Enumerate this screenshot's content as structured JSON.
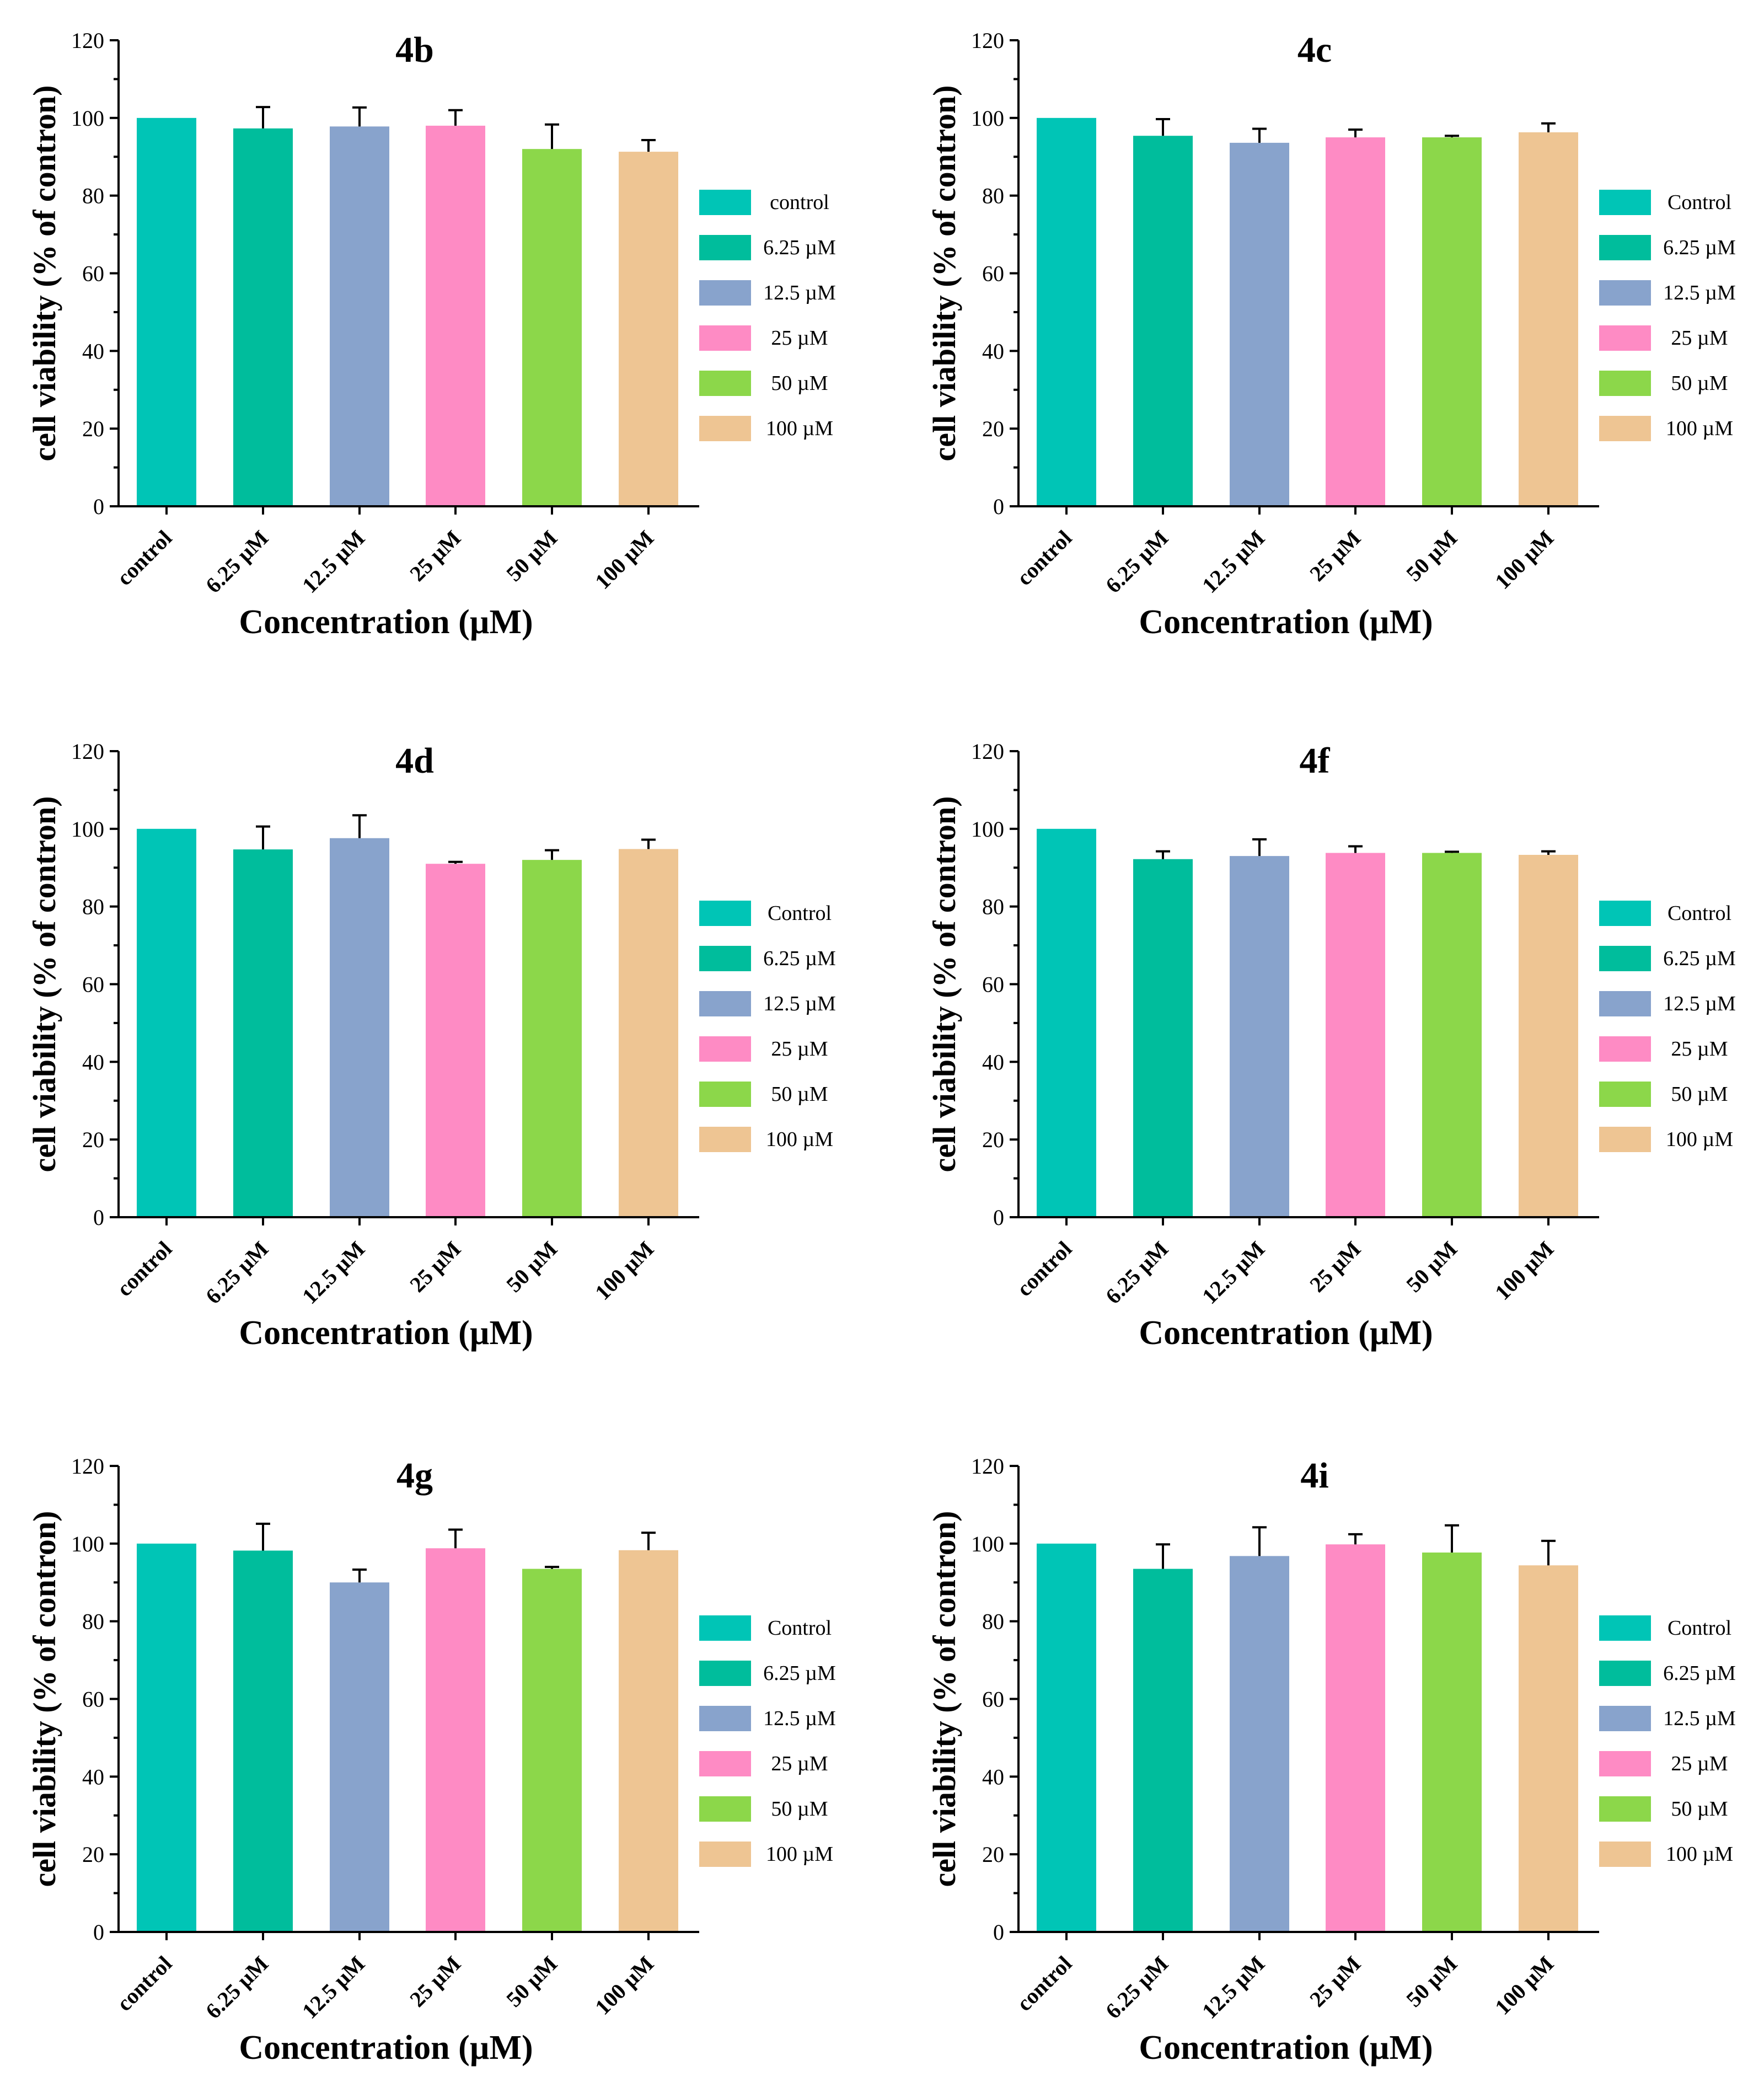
{
  "colors": [
    "#00C5B6",
    "#00BD9C",
    "#88A3CC",
    "#FE8BC4",
    "#8CD74A",
    "#EEC593"
  ],
  "chart_data": [
    {
      "type": "bar",
      "title": "4b",
      "xlabel": "Concentration (µM)",
      "ylabel": "cell viability (% of contron)",
      "ylim": [
        0,
        120
      ],
      "yticks": [
        "0",
        "20",
        "40",
        "60",
        "80",
        "100",
        "120"
      ],
      "categories": [
        "control",
        "6.25 µM",
        "12.5 µM",
        "25 µM",
        "50 µM",
        "100 µM"
      ],
      "values": [
        100,
        97.3,
        97.8,
        98.0,
        92.0,
        91.3
      ],
      "errors": [
        0,
        5.5,
        4.9,
        4.0,
        6.3,
        3.0
      ],
      "legend": [
        "control",
        "6.25  µM",
        "12.5  µM",
        "25  µM",
        "50  µM",
        "100  µM"
      ]
    },
    {
      "type": "bar",
      "title": "4c",
      "xlabel": "Concentration (µM)",
      "ylabel": "cell viability (% of contron)",
      "ylim": [
        0,
        120
      ],
      "yticks": [
        "0",
        "20",
        "40",
        "60",
        "80",
        "100",
        "120"
      ],
      "categories": [
        "control",
        "6.25 µM",
        "12.5 µM",
        "25 µM",
        "50 µM",
        "100 µM"
      ],
      "values": [
        100,
        95.4,
        93.6,
        95.0,
        95.0,
        96.3
      ],
      "errors": [
        0,
        4.3,
        3.6,
        2.0,
        0.4,
        2.3
      ],
      "legend": [
        "Control",
        "6.25  µM",
        "12.5  µM",
        "25  µM",
        "50  µM",
        "100  µM"
      ]
    },
    {
      "type": "bar",
      "title": "4d",
      "xlabel": "Concentration (µM)",
      "ylabel": "cell viability (% of contron)",
      "ylim": [
        0,
        120
      ],
      "yticks": [
        "0",
        "20",
        "40",
        "60",
        "80",
        "100",
        "120"
      ],
      "categories": [
        "control",
        "6.25 µM",
        "12.5 µM",
        "25 µM",
        "50 µM",
        "100 µM"
      ],
      "values": [
        100,
        94.7,
        97.6,
        91.0,
        92.0,
        94.8
      ],
      "errors": [
        0,
        5.9,
        5.9,
        0.5,
        2.5,
        2.4
      ],
      "legend": [
        "Control",
        "6.25  µM",
        "12.5  µM",
        "25  µM",
        "50  µM",
        "100  µM"
      ]
    },
    {
      "type": "bar",
      "title": "4f",
      "xlabel": "Concentration (µM)",
      "ylabel": "cell viability (% of contron)",
      "ylim": [
        0,
        120
      ],
      "yticks": [
        "0",
        "20",
        "40",
        "60",
        "80",
        "100",
        "120"
      ],
      "categories": [
        "control",
        "6.25 µM",
        "12.5 µM",
        "25 µM",
        "50 µM",
        "100 µM"
      ],
      "values": [
        100,
        92.2,
        93.0,
        93.8,
        93.8,
        93.3
      ],
      "errors": [
        0,
        2.0,
        4.3,
        1.7,
        0.3,
        0.9
      ],
      "legend": [
        "Control",
        "6.25  µM",
        "12.5  µM",
        "25  µM",
        "50  µM",
        "100  µM"
      ]
    },
    {
      "type": "bar",
      "title": "4g",
      "xlabel": "Concentration (µM)",
      "ylabel": "cell viability (% of contron)",
      "ylim": [
        0,
        120
      ],
      "yticks": [
        "0",
        "20",
        "40",
        "60",
        "80",
        "100",
        "120"
      ],
      "categories": [
        "control",
        "6.25 µM",
        "12.5 µM",
        "25 µM",
        "50 µM",
        "100 µM"
      ],
      "values": [
        100,
        98.2,
        90.0,
        98.8,
        93.5,
        98.3
      ],
      "errors": [
        0,
        6.9,
        3.3,
        4.8,
        0.5,
        4.5
      ],
      "legend": [
        "Control",
        "6.25  µM",
        "12.5  µM",
        "25  µM",
        "50  µM",
        "100  µM"
      ]
    },
    {
      "type": "bar",
      "title": "4i",
      "xlabel": "Concentration (µM)",
      "ylabel": "cell viability (% of contron)",
      "ylim": [
        0,
        120
      ],
      "yticks": [
        "0",
        "20",
        "40",
        "60",
        "80",
        "100",
        "120"
      ],
      "categories": [
        "control",
        "6.25 µM",
        "12.5 µM",
        "25 µM",
        "50 µM",
        "100 µM"
      ],
      "values": [
        100,
        93.5,
        96.8,
        99.8,
        97.7,
        94.4
      ],
      "errors": [
        0,
        6.3,
        7.4,
        2.6,
        7.0,
        6.3
      ],
      "legend": [
        "Control",
        "6.25  µM",
        "12.5  µM",
        "25  µM",
        "50  µM",
        "100  µM"
      ]
    }
  ]
}
